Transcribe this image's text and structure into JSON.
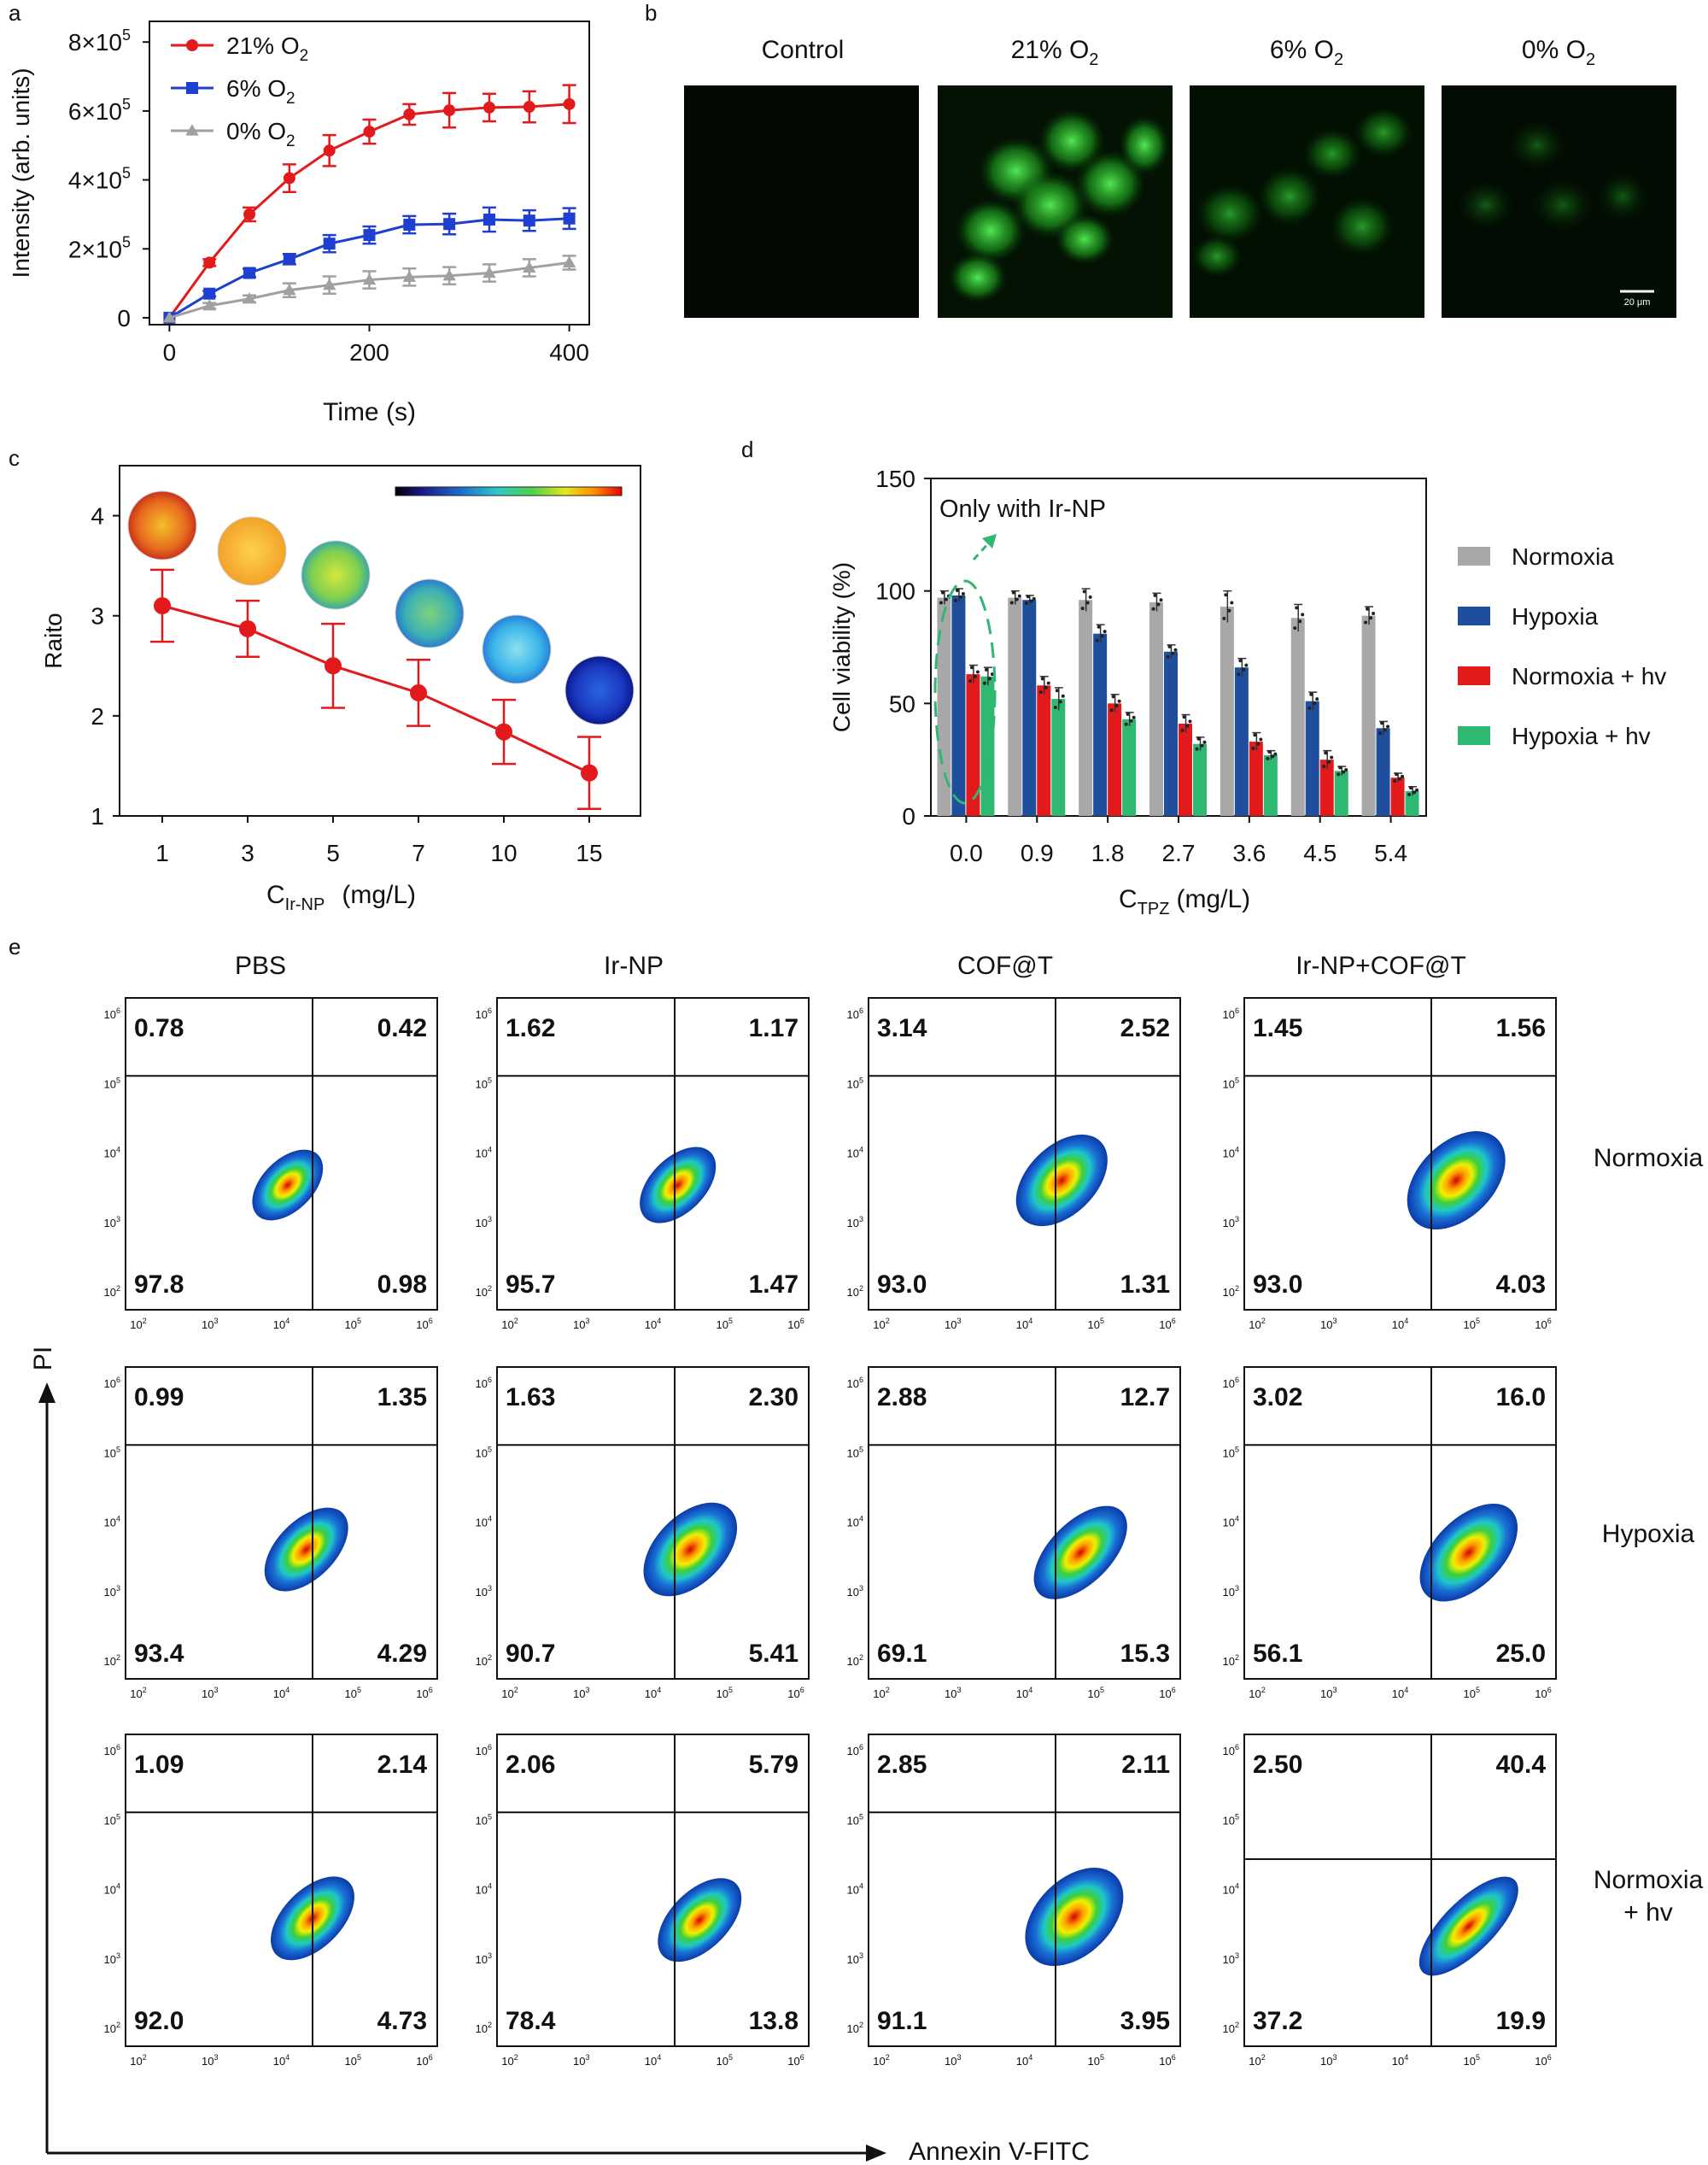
{
  "panel_labels": {
    "a": "a",
    "b": "b",
    "c": "c",
    "d": "d",
    "e": "e"
  },
  "colors": {
    "red": "#e31a1c",
    "blue": "#1f3fd0",
    "gray": "#a0a0a0",
    "d_gray": "#a8a8a8",
    "d_blue": "#1f4e9c",
    "d_red": "#e31a1c",
    "d_green": "#2eb872",
    "cell_green": "#3bd43b",
    "axis": "#111111",
    "facs_line": "#111111"
  },
  "chart_data": [
    {
      "id": "a",
      "type": "line",
      "xlabel": "Time (s)",
      "ylabel": "Intensity (arb. units)",
      "xlim": [
        -20,
        420
      ],
      "ylim": [
        -20000,
        860000
      ],
      "xticks": [
        {
          "v": 0,
          "label": "0"
        },
        {
          "v": 200,
          "label": "200"
        },
        {
          "v": 400,
          "label": "400"
        }
      ],
      "yticks": [
        {
          "v": 0,
          "label": "0",
          "exp": ""
        },
        {
          "v": 200000,
          "label": "2×10",
          "exp": "5"
        },
        {
          "v": 400000,
          "label": "4×10",
          "exp": "5"
        },
        {
          "v": 600000,
          "label": "6×10",
          "exp": "5"
        },
        {
          "v": 800000,
          "label": "8×10",
          "exp": "5"
        }
      ],
      "x": [
        0,
        40,
        80,
        120,
        160,
        200,
        240,
        280,
        320,
        360,
        400
      ],
      "series": [
        {
          "name": "21% O",
          "sub": "2",
          "color": "#e31a1c",
          "marker": "circle",
          "values": [
            0,
            160000,
            300000,
            405000,
            485000,
            540000,
            590000,
            602000,
            610000,
            612000,
            620000
          ],
          "err": [
            0,
            10000,
            20000,
            40000,
            45000,
            35000,
            30000,
            50000,
            40000,
            45000,
            55000
          ]
        },
        {
          "name": "6% O",
          "sub": "2",
          "color": "#1f3fd0",
          "marker": "square",
          "values": [
            0,
            70000,
            130000,
            170000,
            215000,
            240000,
            270000,
            272000,
            285000,
            282000,
            288000
          ],
          "err": [
            0,
            8000,
            12000,
            15000,
            25000,
            25000,
            25000,
            30000,
            35000,
            30000,
            30000
          ]
        },
        {
          "name": "0% O",
          "sub": "2",
          "color": "#a0a0a0",
          "marker": "triangle",
          "values": [
            0,
            35000,
            55000,
            80000,
            95000,
            110000,
            118000,
            122000,
            130000,
            145000,
            160000
          ],
          "err": [
            0,
            8000,
            10000,
            20000,
            25000,
            25000,
            25000,
            25000,
            25000,
            25000,
            20000
          ]
        }
      ],
      "legend_position": "top-left"
    },
    {
      "id": "c",
      "type": "line",
      "xlabel_main": "C",
      "xlabel_sub": "Ir-NP",
      "xlabel_unit": "(mg/L)",
      "ylabel": "Raito",
      "ylim": [
        1,
        4.5
      ],
      "yticks": [
        1,
        2,
        3,
        4
      ],
      "categories": [
        "1",
        "3",
        "5",
        "7",
        "10",
        "15"
      ],
      "values": [
        3.1,
        2.87,
        2.5,
        2.23,
        1.84,
        1.43
      ],
      "err": [
        0.36,
        0.28,
        0.42,
        0.33,
        0.32,
        0.36
      ],
      "color": "#e31a1c",
      "colorbar_position": "top-right",
      "well_images": [
        "red-yellow well",
        "orange well",
        "yellow-green well",
        "green-cyan well",
        "cyan well",
        "blue well"
      ]
    },
    {
      "id": "d",
      "type": "bar",
      "ylabel": "Cell viability (%)",
      "xlabel_main": "C",
      "xlabel_sub": "TPZ",
      "xlabel_unit": "(mg/L)",
      "ylim": [
        0,
        150
      ],
      "yticks": [
        0,
        50,
        100,
        150
      ],
      "categories": [
        "0.0",
        "0.9",
        "1.8",
        "2.7",
        "3.6",
        "4.5",
        "5.4"
      ],
      "series": [
        {
          "name": "Normoxia",
          "color": "#a8a8a8",
          "values": [
            97,
            97,
            96,
            95,
            93,
            88,
            89
          ],
          "err": [
            3,
            3,
            5,
            4,
            7,
            6,
            4
          ]
        },
        {
          "name": "Hypoxia",
          "color": "#1f4e9c",
          "values": [
            98,
            96,
            81,
            73,
            66,
            51,
            39
          ],
          "err": [
            3,
            2,
            4,
            3,
            4,
            4,
            3
          ]
        },
        {
          "name": "Normoxia + hv",
          "color": "#e31a1c",
          "values": [
            63,
            58,
            50,
            41,
            33,
            25,
            17
          ],
          "err": [
            4,
            4,
            4,
            4,
            4,
            4,
            2
          ]
        },
        {
          "name": "Hypoxia + hv",
          "color": "#2eb872",
          "values": [
            62,
            52,
            43,
            32,
            27,
            20,
            11
          ],
          "err": [
            4,
            5,
            3,
            3,
            2,
            2,
            2
          ]
        }
      ],
      "annotation": "Only with Ir-NP",
      "legend_position": "right"
    },
    {
      "id": "e",
      "type": "scatter",
      "description_type": "flow-cytometry density plots (3×4 grid)",
      "xlabel": "Annexin V-FITC",
      "ylabel": "PI",
      "column_labels": [
        "PBS",
        "Ir-NP",
        "COF@T",
        "Ir-NP+COF@T"
      ],
      "row_labels": [
        [
          "Normoxia"
        ],
        [
          "Hypoxia"
        ],
        [
          "Normoxia",
          "+ hv"
        ]
      ],
      "tick_exponents": [
        "2",
        "3",
        "4",
        "5",
        "6"
      ],
      "quadrant_values": [
        [
          [
            "0.78",
            "0.42",
            "97.8",
            "0.98"
          ],
          [
            "1.62",
            "1.17",
            "95.7",
            "1.47"
          ],
          [
            "3.14",
            "2.52",
            "93.0",
            "1.31"
          ],
          [
            "1.45",
            "1.56",
            "93.0",
            "4.03"
          ]
        ],
        [
          [
            "0.99",
            "1.35",
            "93.4",
            "4.29"
          ],
          [
            "1.63",
            "2.30",
            "90.7",
            "5.41"
          ],
          [
            "2.88",
            "12.7",
            "69.1",
            "15.3"
          ],
          [
            "3.02",
            "16.0",
            "56.1",
            "25.0"
          ]
        ],
        [
          [
            "1.09",
            "2.14",
            "92.0",
            "4.73"
          ],
          [
            "2.06",
            "5.79",
            "78.4",
            "13.8"
          ],
          [
            "2.85",
            "2.11",
            "91.1",
            "3.95"
          ],
          [
            "2.50",
            "40.4",
            "37.2",
            "19.9"
          ]
        ]
      ]
    }
  ],
  "panel_b": {
    "titles": [
      {
        "main": "Control",
        "sub": ""
      },
      {
        "main": "21% O",
        "sub": "2"
      },
      {
        "main": "6% O",
        "sub": "2"
      },
      {
        "main": "0% O",
        "sub": "2"
      }
    ],
    "image_descriptions": [
      "dark control field",
      "bright green fluorescent cells",
      "moderate green fluorescent cells",
      "dim green fluorescent cells"
    ],
    "scale_bar": "20 μm"
  }
}
